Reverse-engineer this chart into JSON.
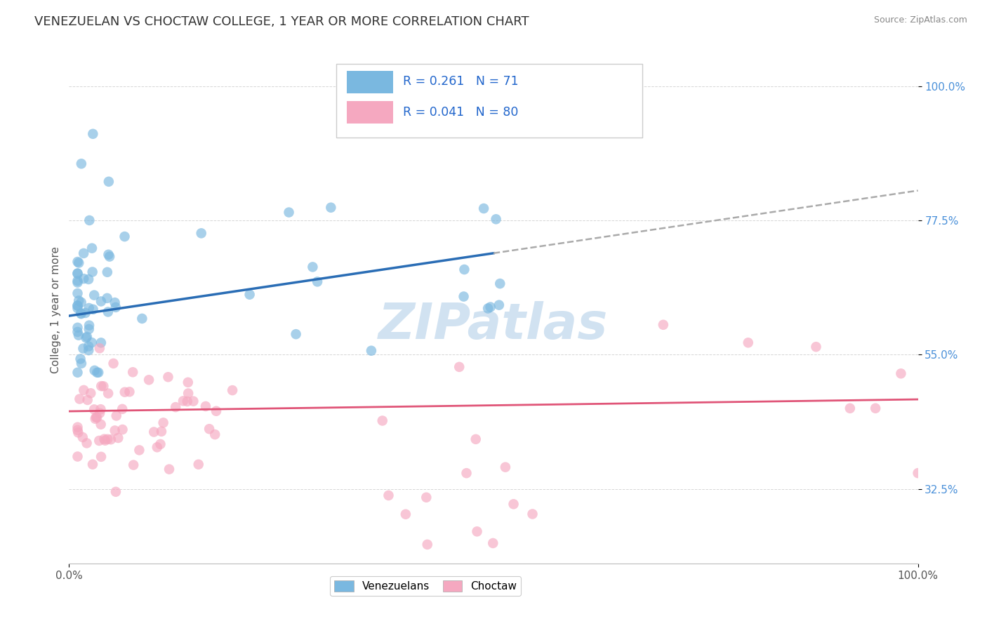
{
  "title": "VENEZUELAN VS CHOCTAW COLLEGE, 1 YEAR OR MORE CORRELATION CHART",
  "source": "Source: ZipAtlas.com",
  "ylabel": "College, 1 year or more",
  "xlim": [
    0.0,
    1.0
  ],
  "ylim": [
    0.2,
    1.05
  ],
  "xtick_labels": [
    "0.0%",
    "100.0%"
  ],
  "ytick_labels": [
    "32.5%",
    "55.0%",
    "77.5%",
    "100.0%"
  ],
  "ytick_positions": [
    0.325,
    0.55,
    0.775,
    1.0
  ],
  "legend_r1": "0.261",
  "legend_n1": "71",
  "legend_r2": "0.041",
  "legend_n2": "80",
  "legend_label1": "Venezuelans",
  "legend_label2": "Choctaw",
  "blue_color": "#7ab8e0",
  "pink_color": "#f5a8c0",
  "blue_line_color": "#2a6db5",
  "pink_line_color": "#e05578",
  "gray_dash_color": "#aaaaaa",
  "background_color": "#ffffff",
  "grid_color": "#cccccc",
  "title_color": "#333333",
  "title_fontsize": 13,
  "axis_label_color": "#555555",
  "tick_label_color_y": "#4a90d9",
  "tick_label_color_x": "#555555",
  "watermark_color": "#ccdff0"
}
